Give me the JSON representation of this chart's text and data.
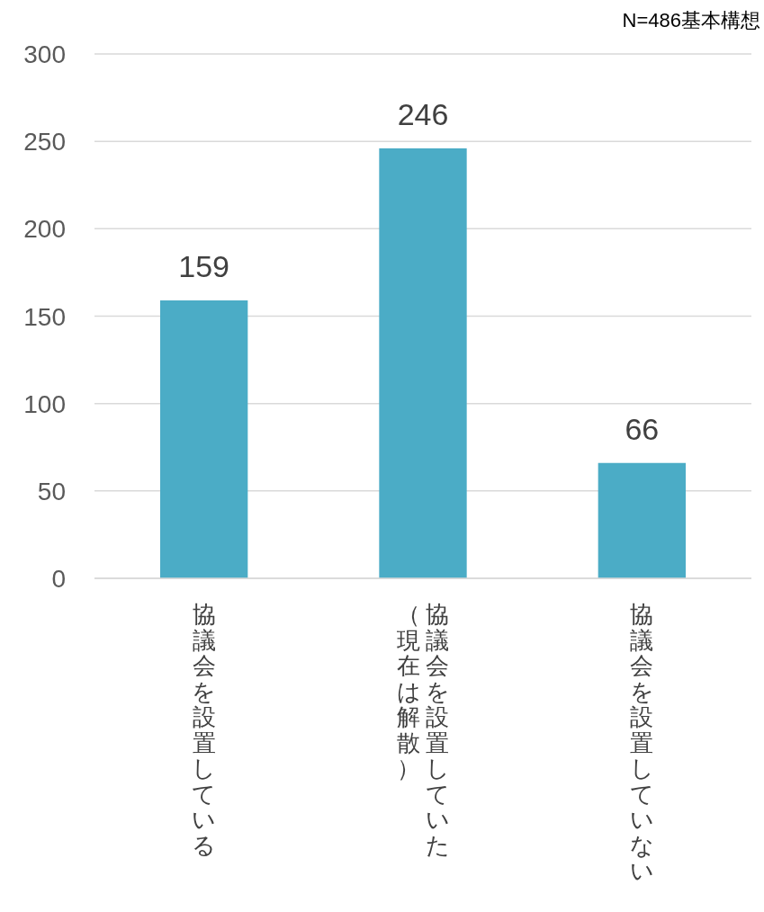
{
  "chart_data": {
    "type": "bar",
    "title": "N=486基本構想",
    "categories": [
      "協議会を設置している",
      "協議会を設置していた",
      "協議会を設置していない"
    ],
    "annotations": [
      "（現在は解散）"
    ],
    "values": [
      159,
      246,
      66
    ],
    "color": "#4bacc6",
    "ylim": [
      0,
      300
    ],
    "yticks": [
      0,
      50,
      100,
      150,
      200,
      250,
      300
    ],
    "grid": "y",
    "data_labels": true
  }
}
